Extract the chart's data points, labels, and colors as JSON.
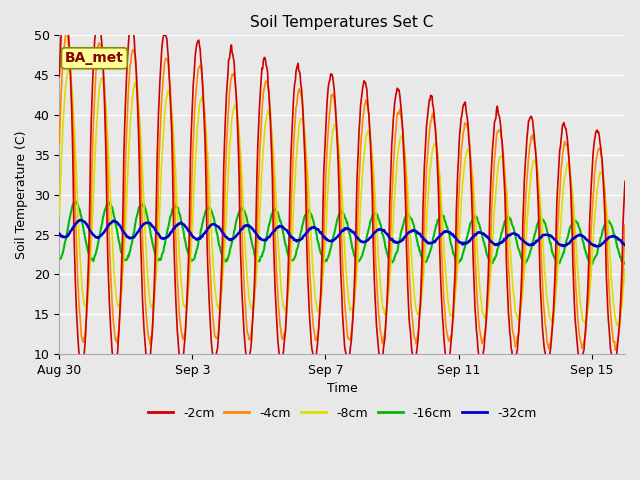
{
  "title": "Soil Temperatures Set C",
  "xlabel": "Time",
  "ylabel": "Soil Temperature (C)",
  "ylim": [
    10,
    50
  ],
  "xlim_days": [
    0,
    17
  ],
  "plot_bg_color": "#e8e8e8",
  "fig_bg_color": "#e8e8e8",
  "annotation_text": "BA_met",
  "annotation_bg": "#ffff99",
  "annotation_border": "#888800",
  "annotation_text_color": "#880000",
  "tick_labels_x": [
    "Aug 30",
    "Sep 3",
    "Sep 7",
    "Sep 11",
    "Sep 15"
  ],
  "tick_positions_x": [
    0,
    4,
    8,
    12,
    16
  ],
  "yticks": [
    10,
    15,
    20,
    25,
    30,
    35,
    40,
    45,
    50
  ],
  "series": {
    "neg2cm": {
      "color": "#cc0000",
      "label": "-2cm",
      "lw": 1.2
    },
    "neg4cm": {
      "color": "#ff8800",
      "label": "-4cm",
      "lw": 1.2
    },
    "neg8cm": {
      "color": "#dddd00",
      "label": "-8cm",
      "lw": 1.2
    },
    "neg16cm": {
      "color": "#00bb00",
      "label": "-16cm",
      "lw": 1.5
    },
    "neg32cm": {
      "color": "#0000cc",
      "label": "-32cm",
      "lw": 1.8
    }
  },
  "grid_color": "#ffffff",
  "grid_lw": 1.0
}
